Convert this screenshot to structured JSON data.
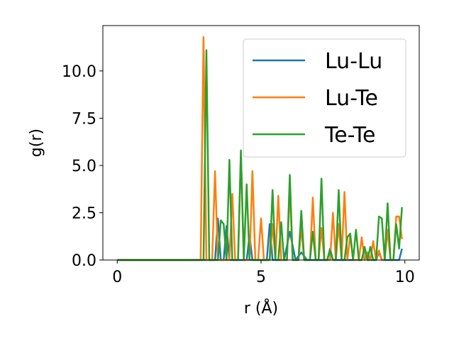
{
  "chart_data": {
    "type": "line",
    "title": "",
    "xlabel": "r (Å)",
    "ylabel": "g(r)",
    "xlim": [
      -0.5,
      10.5
    ],
    "ylim": [
      0,
      12.4
    ],
    "xticks": [
      0,
      5,
      10
    ],
    "xtick_labels": [
      "0",
      "5",
      "10"
    ],
    "yticks": [
      0.0,
      2.5,
      5.0,
      7.5,
      10.0
    ],
    "ytick_labels": [
      "0.0",
      "2.5",
      "5.0",
      "7.5",
      "10.0"
    ],
    "grid": false,
    "legend_position": "top-right",
    "series": [
      {
        "name": "Lu-Lu",
        "color": "#1f77b4",
        "x": [
          0,
          0.5,
          1.0,
          1.5,
          2.0,
          2.5,
          2.9,
          3.4,
          3.5,
          3.6,
          3.7,
          3.8,
          3.9,
          4.0,
          4.1,
          4.3,
          4.5,
          4.6,
          4.7,
          4.8,
          4.9,
          5.0,
          5.1,
          5.2,
          5.3,
          5.4,
          5.5,
          5.6,
          5.8,
          6.0,
          6.2,
          6.4,
          6.6,
          6.7,
          6.8,
          6.9,
          7.0,
          7.1,
          7.2,
          7.3,
          7.4,
          7.5,
          7.6,
          7.7,
          7.9,
          8.1,
          8.3,
          8.5,
          8.6,
          8.7,
          8.8,
          8.9,
          9.0,
          9.1,
          9.2,
          9.3,
          9.4,
          9.5,
          9.6,
          9.7,
          9.8,
          9.9
        ],
        "y": [
          0,
          0,
          0,
          0,
          0,
          0,
          0,
          0,
          2.2,
          0,
          0,
          1.8,
          0,
          0,
          0,
          0,
          0,
          1.3,
          0,
          0,
          0,
          0,
          0,
          0,
          1.9,
          0,
          0,
          0,
          0,
          1.5,
          0,
          0.4,
          0,
          0,
          0,
          0,
          0,
          0,
          0,
          0,
          0.6,
          0,
          0,
          0,
          0,
          0,
          0,
          0,
          0.6,
          0,
          0,
          0,
          0,
          0.4,
          0,
          0,
          0,
          0,
          0,
          0,
          0,
          0.6
        ]
      },
      {
        "name": "Lu-Te",
        "color": "#ff7f0e",
        "x": [
          0,
          0.5,
          1.0,
          1.5,
          2.0,
          2.5,
          2.9,
          3.0,
          3.1,
          3.2,
          3.3,
          3.4,
          3.5,
          3.6,
          3.7,
          3.8,
          3.9,
          4.0,
          4.1,
          4.2,
          4.3,
          4.4,
          4.5,
          4.6,
          4.7,
          4.8,
          4.9,
          5.0,
          5.1,
          5.2,
          5.3,
          5.4,
          5.5,
          5.6,
          5.7,
          5.8,
          5.9,
          6.0,
          6.1,
          6.2,
          6.3,
          6.4,
          6.5,
          6.6,
          6.7,
          6.8,
          6.9,
          7.0,
          7.1,
          7.2,
          7.3,
          7.4,
          7.5,
          7.6,
          7.7,
          7.8,
          7.9,
          8.0,
          8.1,
          8.2,
          8.3,
          8.4,
          8.5,
          8.6,
          8.7,
          8.8,
          8.9,
          9.0,
          9.1,
          9.2,
          9.3,
          9.4,
          9.5,
          9.6,
          9.7,
          9.8,
          9.9
        ],
        "y": [
          0,
          0,
          0,
          0,
          0,
          0,
          0,
          11.8,
          0,
          0,
          0,
          4.7,
          0,
          0,
          0,
          0,
          0,
          3.5,
          0,
          0,
          5.6,
          0,
          0,
          0,
          4.7,
          0,
          0,
          2.2,
          0,
          0,
          0,
          1.9,
          0,
          3.4,
          0,
          0,
          0,
          3.8,
          0,
          0,
          0,
          1.7,
          0,
          0,
          0,
          3.3,
          0,
          0,
          1.7,
          0,
          0,
          0,
          2.5,
          0,
          1.9,
          0,
          3.6,
          0,
          1.3,
          0,
          0,
          0,
          1.2,
          0,
          0.4,
          0,
          1.0,
          0,
          0.5,
          0,
          0,
          1.6,
          0,
          0,
          2.3,
          2.3,
          1.1
        ]
      },
      {
        "name": "Te-Te",
        "color": "#2ca02c",
        "x": [
          0,
          0.5,
          1.0,
          1.5,
          2.0,
          2.5,
          2.9,
          3.0,
          3.1,
          3.2,
          3.3,
          3.4,
          3.5,
          3.6,
          3.7,
          3.8,
          3.9,
          4.0,
          4.1,
          4.2,
          4.3,
          4.4,
          4.5,
          4.6,
          4.7,
          4.8,
          4.9,
          5.0,
          5.1,
          5.2,
          5.3,
          5.4,
          5.5,
          5.6,
          5.7,
          5.8,
          5.9,
          6.0,
          6.1,
          6.2,
          6.3,
          6.4,
          6.5,
          6.6,
          6.7,
          6.8,
          6.9,
          7.0,
          7.1,
          7.2,
          7.3,
          7.4,
          7.5,
          7.6,
          7.7,
          7.8,
          7.9,
          8.0,
          8.1,
          8.2,
          8.3,
          8.4,
          8.5,
          8.6,
          8.7,
          8.8,
          8.9,
          9.0,
          9.1,
          9.2,
          9.3,
          9.4,
          9.5,
          9.6,
          9.7,
          9.8,
          9.9
        ],
        "y": [
          0,
          0,
          0,
          0,
          0,
          0,
          0,
          0,
          11.1,
          0,
          0,
          0,
          0,
          2.1,
          1.9,
          0,
          5.3,
          0,
          0,
          0,
          5.8,
          0,
          4.0,
          0,
          0,
          0,
          0,
          0,
          0,
          0,
          0,
          3.7,
          0,
          0,
          2.0,
          0,
          0,
          4.5,
          0,
          0,
          0,
          2.6,
          0,
          0,
          0,
          1.5,
          0,
          0,
          4.3,
          0,
          0,
          0.5,
          0,
          0,
          3.7,
          0,
          0,
          1.2,
          1.4,
          0,
          1.6,
          0,
          0,
          0.7,
          0,
          0.7,
          0,
          0,
          2.3,
          2.2,
          0,
          3.0,
          0,
          0,
          1.9,
          0.6,
          2.8
        ]
      }
    ]
  }
}
